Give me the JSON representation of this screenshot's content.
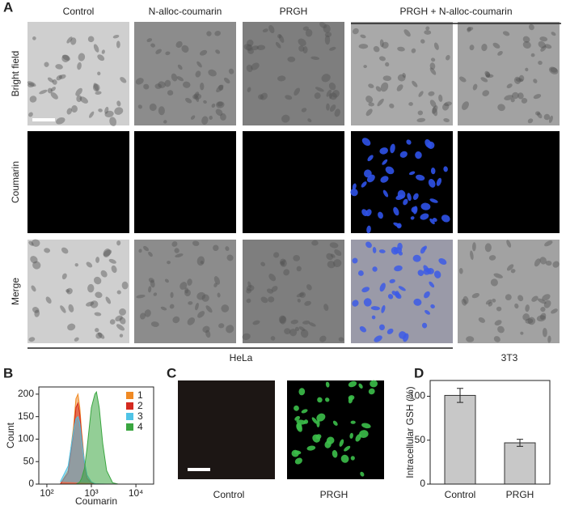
{
  "panel_labels": [
    "A",
    "B",
    "C",
    "D"
  ],
  "figure_a": {
    "columns": [
      "Control",
      "N-alloc-coumarin",
      "PRGH"
    ],
    "group_header": "PRGH + N-alloc-coumarin",
    "rows": [
      "Bright field",
      "Coumarin",
      "Merge"
    ],
    "cell_lines": [
      "HeLa",
      "3T3"
    ]
  },
  "figure_c": {
    "labels": [
      "Control",
      "PRGH"
    ]
  },
  "chart_data": [
    {
      "type": "area",
      "x_label": "Coumarin",
      "y_label": "Count",
      "log_x": true,
      "x": [
        200,
        300,
        400,
        450,
        500,
        550,
        600,
        700,
        800,
        1000,
        1200,
        1300,
        1500,
        1800,
        2200,
        3000,
        4000
      ],
      "series": [
        {
          "name": "1",
          "color": "#f08a24",
          "values": [
            0,
            30,
            130,
            190,
            200,
            170,
            120,
            50,
            15,
            3,
            0,
            0,
            0,
            0,
            0,
            0,
            0
          ]
        },
        {
          "name": "2",
          "color": "#d42a20",
          "values": [
            0,
            25,
            115,
            170,
            180,
            155,
            110,
            45,
            12,
            2,
            0,
            0,
            0,
            0,
            0,
            0,
            0
          ]
        },
        {
          "name": "3",
          "color": "#4fc3e6",
          "values": [
            5,
            40,
            120,
            145,
            150,
            135,
            100,
            50,
            20,
            5,
            1,
            0,
            0,
            0,
            0,
            0,
            0
          ]
        },
        {
          "name": "4",
          "color": "#3aa640",
          "values": [
            0,
            0,
            0,
            0,
            2,
            5,
            12,
            35,
            80,
            170,
            200,
            205,
            170,
            90,
            30,
            3,
            0
          ]
        }
      ],
      "xlim": [
        66,
        25000
      ],
      "xticks": [
        {
          "value": 100,
          "label": "10²"
        },
        {
          "value": 1000,
          "label": "10³"
        },
        {
          "value": 10000,
          "label": "10⁴"
        }
      ],
      "ylim": [
        0,
        216
      ],
      "yticks": [
        0,
        50,
        100,
        150,
        200
      ]
    },
    {
      "type": "bar",
      "y_label": "Intracellular GSH (%)",
      "categories": [
        "Control",
        "PRGH"
      ],
      "values": [
        101,
        47
      ],
      "errors": [
        8,
        4
      ],
      "color": "#c8c8c8",
      "ylim": [
        0,
        118
      ],
      "yticks": [
        0,
        50,
        100
      ]
    }
  ]
}
